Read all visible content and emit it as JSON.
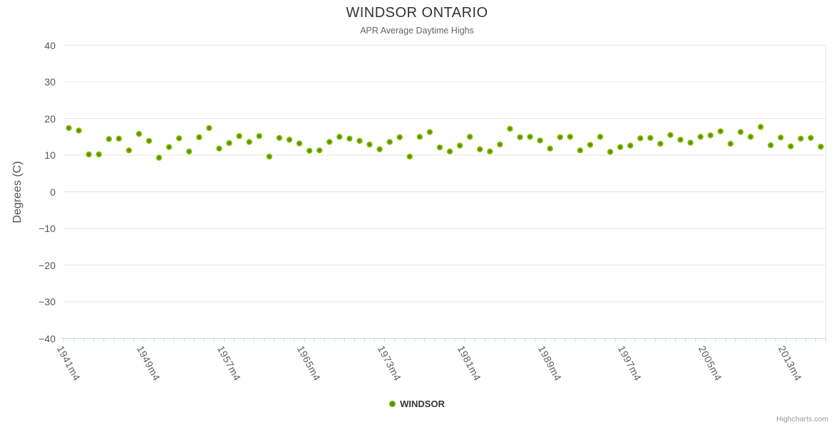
{
  "chart": {
    "credits_label": "Highcharts.com"
  },
  "chart_data": {
    "type": "scatter",
    "title": "WINDSOR ONTARIO",
    "subtitle": "APR Average Daytime Highs",
    "ylabel": "Degrees (C)",
    "xlabel": "",
    "ylim": [
      -40,
      40
    ],
    "yticks": [
      40,
      30,
      20,
      10,
      0,
      -10,
      -20,
      -30,
      -40
    ],
    "grid": true,
    "legend_position": "bottom",
    "x_label_suffix": "m4",
    "x_labeled_years": [
      1941,
      1949,
      1957,
      1965,
      1973,
      1981,
      1989,
      1997,
      2005,
      2013
    ],
    "x": [
      1941,
      1942,
      1943,
      1944,
      1945,
      1946,
      1947,
      1948,
      1949,
      1950,
      1951,
      1952,
      1953,
      1954,
      1955,
      1956,
      1957,
      1958,
      1959,
      1960,
      1961,
      1962,
      1963,
      1964,
      1965,
      1966,
      1967,
      1968,
      1969,
      1970,
      1971,
      1972,
      1973,
      1974,
      1975,
      1976,
      1977,
      1978,
      1979,
      1980,
      1981,
      1982,
      1983,
      1984,
      1985,
      1986,
      1987,
      1988,
      1989,
      1990,
      1991,
      1992,
      1993,
      1994,
      1995,
      1996,
      1997,
      1998,
      1999,
      2000,
      2001,
      2002,
      2003,
      2004,
      2005,
      2006,
      2007,
      2008,
      2009,
      2010,
      2011,
      2012,
      2013,
      2014,
      2015,
      2016
    ],
    "series": [
      {
        "name": "WINDSOR",
        "color": "#72aa00",
        "values": [
          17.4,
          16.7,
          10.2,
          10.2,
          14.4,
          14.5,
          11.3,
          15.8,
          13.9,
          9.3,
          12.2,
          14.6,
          11.0,
          14.9,
          17.4,
          11.8,
          13.3,
          15.2,
          13.6,
          15.2,
          9.6,
          14.7,
          14.2,
          13.2,
          11.2,
          11.3,
          13.6,
          15.0,
          14.5,
          13.9,
          12.9,
          11.6,
          13.6,
          14.9,
          9.6,
          15.0,
          16.3,
          12.1,
          11.0,
          12.6,
          15.0,
          11.6,
          11.0,
          12.9,
          17.2,
          14.9,
          15.0,
          14.0,
          11.8,
          14.9,
          15.0,
          11.3,
          12.8,
          15.0,
          10.9,
          12.2,
          12.6,
          14.6,
          14.7,
          13.1,
          15.5,
          14.2,
          13.4,
          15.0,
          15.4,
          16.5,
          13.1,
          16.3,
          15.0,
          17.7,
          12.7,
          14.8,
          12.4,
          14.5,
          14.7,
          12.3
        ]
      }
    ],
    "colors": {
      "point_fill_center": "#3f7200",
      "point_fill_mid": "#71aa00",
      "point_fill_edge": "#8ec900",
      "gridline": "#e6e6e6",
      "axis_line": "#ccd6eb",
      "title_text": "#333333",
      "subtitle_text": "#666666",
      "axis_label_text": "#555555",
      "credits_text": "#999999"
    }
  }
}
